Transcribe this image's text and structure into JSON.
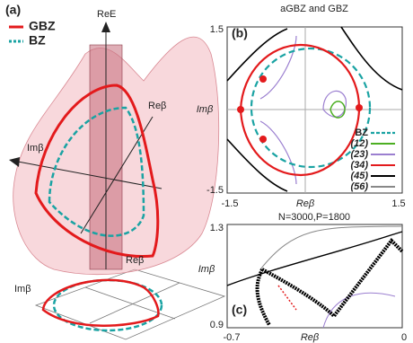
{
  "panel_a": {
    "label": "(a)",
    "legend": [
      "GBZ",
      "BZ"
    ],
    "axis_labels": {
      "re_e": "ReE",
      "re_beta": "Reβ",
      "im_beta": "Imβ",
      "re_beta_bottom": "Reβ",
      "im_beta_bottom": "Imβ"
    }
  },
  "panel_b": {
    "title": "aGBZ and GBZ",
    "label": "(b)",
    "y_ticks": [
      "1.5",
      "-1.5"
    ],
    "x_ticks": [
      "-1.5",
      "1.5"
    ],
    "x_label": "Reβ",
    "y_label": "Imβ",
    "legend": [
      "BZ",
      "(12)",
      "(23)",
      "(34)",
      "(45)",
      "(56)"
    ]
  },
  "panel_c": {
    "title": "N=3000,P=1800",
    "label": "(c)",
    "y_ticks": [
      "1.3",
      "0.9"
    ],
    "x_ticks": [
      "-0.7",
      "0"
    ],
    "x_label": "Reβ",
    "y_label": "Imβ"
  }
}
